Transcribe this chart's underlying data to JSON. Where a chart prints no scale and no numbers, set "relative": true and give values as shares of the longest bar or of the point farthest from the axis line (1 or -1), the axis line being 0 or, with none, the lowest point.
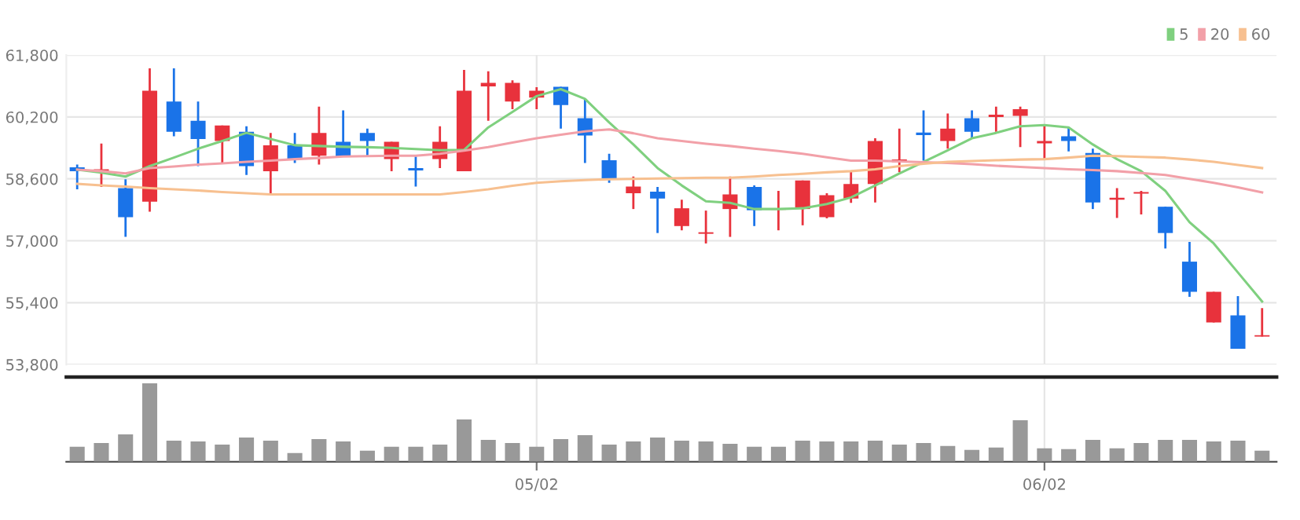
{
  "chart_data": [
    {
      "type": "candlestick",
      "categories": [
        null,
        null,
        null,
        null,
        null,
        null,
        null,
        null,
        null,
        null,
        null,
        null,
        null,
        null,
        null,
        null,
        null,
        null,
        null,
        null,
        null,
        null,
        null,
        null,
        null,
        null,
        null,
        null,
        null,
        null,
        null,
        null,
        null,
        null,
        null,
        null,
        null,
        null,
        null,
        null,
        null,
        null,
        null,
        null,
        null,
        null,
        null,
        null,
        null,
        null
      ],
      "ohlc": [
        [
          58900,
          58970,
          58330,
          58800
        ],
        [
          58800,
          59515,
          58390,
          58850
        ],
        [
          58360,
          58590,
          57100,
          57610
        ],
        [
          58010,
          61460,
          57750,
          60880
        ],
        [
          60600,
          61460,
          59700,
          59820
        ],
        [
          60100,
          60600,
          58930,
          59630
        ],
        [
          59580,
          59980,
          59000,
          59980
        ],
        [
          59820,
          59960,
          58700,
          58930
        ],
        [
          58800,
          59790,
          58230,
          59470
        ],
        [
          59470,
          59790,
          59010,
          59100
        ],
        [
          59200,
          60470,
          58970,
          59790
        ],
        [
          59560,
          60370,
          59180,
          59180
        ],
        [
          59790,
          59900,
          59180,
          59580
        ],
        [
          59110,
          59560,
          58800,
          59560
        ],
        [
          58880,
          59180,
          58400,
          58820
        ],
        [
          59110,
          59960,
          58880,
          59560
        ],
        [
          58800,
          61420,
          58800,
          60880
        ],
        [
          60990,
          61380,
          60100,
          61080
        ],
        [
          60600,
          61150,
          60400,
          61080
        ],
        [
          60700,
          60970,
          60400,
          60880
        ],
        [
          60980,
          60980,
          59900,
          60510
        ],
        [
          60170,
          60670,
          59010,
          59720
        ],
        [
          59080,
          59250,
          58500,
          58610
        ],
        [
          58230,
          58660,
          57820,
          58400
        ],
        [
          58270,
          58390,
          57200,
          58090
        ],
        [
          57380,
          58060,
          57270,
          57840
        ],
        [
          57180,
          57780,
          56930,
          57220
        ],
        [
          57820,
          58660,
          57100,
          58200
        ],
        [
          58390,
          58430,
          57380,
          57790
        ],
        [
          57800,
          58290,
          57270,
          57840
        ],
        [
          57820,
          58560,
          57400,
          58560
        ],
        [
          57610,
          58230,
          57580,
          58180
        ],
        [
          58090,
          58800,
          57980,
          58470
        ],
        [
          58470,
          59650,
          57990,
          59580
        ],
        [
          59030,
          59900,
          58770,
          59100
        ],
        [
          59800,
          60370,
          59070,
          59730
        ],
        [
          59580,
          60290,
          59380,
          59900
        ],
        [
          60170,
          60370,
          59650,
          59820
        ],
        [
          60200,
          60470,
          59820,
          60260
        ],
        [
          60230,
          60470,
          59420,
          60400
        ],
        [
          59520,
          59990,
          59110,
          59580
        ],
        [
          59700,
          59950,
          59310,
          59580
        ],
        [
          59270,
          59380,
          57820,
          57990
        ],
        [
          58060,
          58360,
          57590,
          58110
        ],
        [
          58220,
          58290,
          57680,
          58260
        ],
        [
          57880,
          57880,
          56800,
          57200
        ],
        [
          56460,
          56970,
          55550,
          55680
        ],
        [
          54890,
          55680,
          54890,
          55680
        ],
        [
          55070,
          55570,
          54210,
          54210
        ],
        [
          54520,
          55260,
          54520,
          54560
        ]
      ],
      "colors": [
        "#1a73e8",
        "#e8323c",
        "#1a73e8",
        "#e8323c",
        "#1a73e8",
        "#1a73e8",
        "#e8323c",
        "#1a73e8",
        "#e8323c",
        "#1a73e8",
        "#e8323c",
        "#1a73e8",
        "#1a73e8",
        "#e8323c",
        "#1a73e8",
        "#e8323c",
        "#e8323c",
        "#e8323c",
        "#e8323c",
        "#e8323c",
        "#1a73e8",
        "#1a73e8",
        "#1a73e8",
        "#e8323c",
        "#1a73e8",
        "#e8323c",
        "#e8323c",
        "#e8323c",
        "#1a73e8",
        "#e8323c",
        "#e8323c",
        "#e8323c",
        "#e8323c",
        "#e8323c",
        "#e8323c",
        "#1a73e8",
        "#e8323c",
        "#1a73e8",
        "#e8323c",
        "#e8323c",
        "#e8323c",
        "#1a73e8",
        "#1a73e8",
        "#e8323c",
        "#e8323c",
        "#1a73e8",
        "#1a73e8",
        "#e8323c",
        "#1a73e8",
        "#e8323c"
      ],
      "series": [
        {
          "name": "5",
          "type": "line",
          "color": "#7fd07f",
          "values": [
            58840,
            58760,
            58660,
            58930,
            59150,
            59380,
            59580,
            59790,
            59630,
            59470,
            59450,
            59430,
            59420,
            59400,
            59370,
            59340,
            59350,
            59930,
            60330,
            60740,
            60920,
            60670,
            60060,
            59490,
            58880,
            58430,
            58020,
            57980,
            57820,
            57820,
            57840,
            57950,
            58120,
            58430,
            58740,
            59040,
            59340,
            59650,
            59790,
            59960,
            59990,
            59930,
            59490,
            59110,
            58800,
            58290,
            57480,
            56930,
            56180,
            55430
          ]
        },
        {
          "name": "20",
          "type": "line",
          "color": "#f2a0a8",
          "values": [
            58840,
            58800,
            58740,
            58880,
            58920,
            58970,
            59000,
            59040,
            59070,
            59110,
            59140,
            59180,
            59190,
            59200,
            59200,
            59250,
            59330,
            59420,
            59540,
            59650,
            59740,
            59830,
            59880,
            59780,
            59650,
            59580,
            59510,
            59450,
            59380,
            59320,
            59250,
            59160,
            59070,
            59070,
            59050,
            59030,
            59010,
            58980,
            58940,
            58910,
            58880,
            58850,
            58830,
            58800,
            58750,
            58700,
            58600,
            58500,
            58380,
            58250
          ]
        },
        {
          "name": "60",
          "type": "line",
          "color": "#f7c090",
          "values": [
            58470,
            58430,
            58400,
            58360,
            58330,
            58300,
            58260,
            58230,
            58200,
            58200,
            58200,
            58200,
            58200,
            58200,
            58200,
            58200,
            58260,
            58330,
            58420,
            58500,
            58540,
            58570,
            58590,
            58600,
            58610,
            58620,
            58630,
            58630,
            58660,
            58700,
            58730,
            58770,
            58800,
            58850,
            58930,
            58990,
            59040,
            59060,
            59080,
            59100,
            59110,
            59150,
            59200,
            59190,
            59170,
            59150,
            59100,
            59040,
            58960,
            58880
          ]
        }
      ],
      "ylim": [
        53800,
        61800
      ],
      "yticks": [
        {
          "value": 53800,
          "label": "53,800"
        },
        {
          "value": 55400,
          "label": "55,400"
        },
        {
          "value": 57000,
          "label": "57,000"
        },
        {
          "value": 58600,
          "label": "58,600"
        },
        {
          "value": 60200,
          "label": "60,200"
        },
        {
          "value": 61800,
          "label": "61,800"
        }
      ],
      "grid": true,
      "legend": "top right",
      "tick_labels": "y"
    },
    {
      "type": "bar",
      "relative": true,
      "color": "#999999",
      "categories": [
        null,
        null,
        null,
        null,
        null,
        null,
        null,
        null,
        null,
        null,
        null,
        null,
        null,
        null,
        null,
        null,
        null,
        null,
        null,
        "05/02",
        null,
        null,
        null,
        null,
        null,
        null,
        null,
        null,
        null,
        null,
        null,
        null,
        null,
        null,
        null,
        null,
        null,
        null,
        null,
        null,
        "06/02",
        null,
        null,
        null,
        null,
        null,
        null,
        null,
        null,
        null
      ],
      "values": [
        0.19,
        0.24,
        0.35,
        1,
        0.27,
        0.26,
        0.22,
        0.31,
        0.27,
        0.11,
        0.29,
        0.26,
        0.14,
        0.19,
        0.19,
        0.22,
        0.54,
        0.28,
        0.24,
        0.19,
        0.29,
        0.34,
        0.22,
        0.26,
        0.31,
        0.27,
        0.26,
        0.23,
        0.19,
        0.19,
        0.27,
        0.26,
        0.26,
        0.27,
        0.22,
        0.24,
        0.2,
        0.15,
        0.18,
        0.53,
        0.17,
        0.16,
        0.28,
        0.17,
        0.24,
        0.28,
        0.28,
        0.26,
        0.27,
        0.14
      ],
      "grid": "x",
      "tick_labels": "x"
    }
  ]
}
